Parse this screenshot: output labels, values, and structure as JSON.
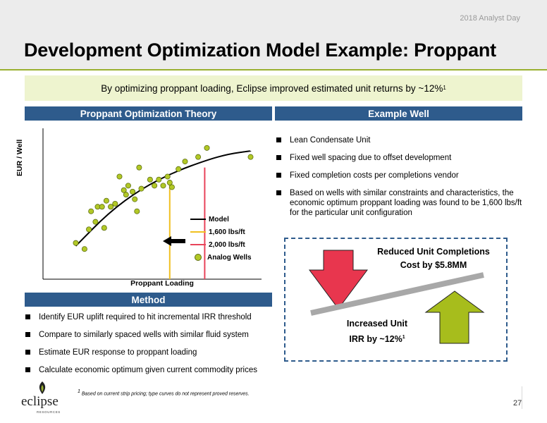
{
  "header": {
    "event": "2018 Analyst Day",
    "title": "Development Optimization Model Example: Proppant"
  },
  "callout": {
    "text": "By optimizing proppant loading, Eclipse improved estimated unit returns by ~12%",
    "footnote_mark": "1"
  },
  "sections": {
    "theory": "Proppant Optimization Theory",
    "example": "Example Well",
    "method": "Method"
  },
  "chart_data": {
    "type": "scatter",
    "xlabel": "Proppant Loading",
    "ylabel": "EUR / Well",
    "legend": [
      "Model",
      "1,600 lbs/ft",
      "2,000 lbs/ft",
      "Analog Wells"
    ],
    "legend_position": "bottom-right",
    "grid": false,
    "ticks_labeled": false,
    "xlim": [
      0,
      100
    ],
    "ylim": [
      0,
      100
    ],
    "model_curve": {
      "x": [
        15,
        30,
        45,
        60,
        75,
        85,
        95
      ],
      "y": [
        22,
        44,
        60,
        71,
        79,
        83,
        85
      ]
    },
    "vertical_lines": [
      {
        "label": "1,600 lbs/ft",
        "x": 58,
        "color": "#f0c020"
      },
      {
        "label": "2,000 lbs/ft",
        "x": 74,
        "color": "#e8445a"
      }
    ],
    "analog_wells": [
      {
        "x": 15,
        "y": 24
      },
      {
        "x": 19,
        "y": 20
      },
      {
        "x": 21,
        "y": 33
      },
      {
        "x": 22,
        "y": 45
      },
      {
        "x": 24,
        "y": 38
      },
      {
        "x": 25,
        "y": 48
      },
      {
        "x": 27,
        "y": 48
      },
      {
        "x": 28,
        "y": 34
      },
      {
        "x": 29,
        "y": 52
      },
      {
        "x": 31,
        "y": 48
      },
      {
        "x": 33,
        "y": 50
      },
      {
        "x": 35,
        "y": 68
      },
      {
        "x": 37,
        "y": 59
      },
      {
        "x": 38,
        "y": 56
      },
      {
        "x": 39,
        "y": 62
      },
      {
        "x": 41,
        "y": 58
      },
      {
        "x": 42,
        "y": 53
      },
      {
        "x": 43,
        "y": 45
      },
      {
        "x": 44,
        "y": 74
      },
      {
        "x": 45,
        "y": 60
      },
      {
        "x": 49,
        "y": 66
      },
      {
        "x": 51,
        "y": 62
      },
      {
        "x": 53,
        "y": 66
      },
      {
        "x": 55,
        "y": 62
      },
      {
        "x": 57,
        "y": 68
      },
      {
        "x": 58,
        "y": 64
      },
      {
        "x": 59,
        "y": 61
      },
      {
        "x": 62,
        "y": 73
      },
      {
        "x": 65,
        "y": 78
      },
      {
        "x": 71,
        "y": 81
      },
      {
        "x": 75,
        "y": 87
      },
      {
        "x": 95,
        "y": 81
      }
    ]
  },
  "example_well": {
    "bullets": [
      "Lean Condensate Unit",
      "Fixed well spacing due to offset development",
      "Fixed completion costs per completions vendor",
      "Based on wells with similar constraints and characteristics, the economic optimum proppant loading was found to be 1,600 lbs/ft for the particular unit configuration"
    ],
    "reduced_line1": "Reduced Unit Completions",
    "reduced_line2": "Cost by $5.8MM",
    "increased_line1": "Increased Unit",
    "increased_line2": "IRR by ~12%",
    "increased_mark": "1",
    "colors": {
      "down_arrow": "#e8364e",
      "up_arrow": "#a7bd1c",
      "beam": "#a8a8a8"
    }
  },
  "method": {
    "bullets": [
      "Identify EUR uplift required to hit incremental IRR threshold",
      "Compare to similarly spaced wells with similar fluid system",
      "Estimate EUR response to proppant loading",
      "Calculate economic optimum given current commodity prices"
    ]
  },
  "footer": {
    "note": "Based on current strip pricing; type curves do not represent proved reserves.",
    "note_mark": "1",
    "logo_text": "eclipse",
    "logo_sub": "RESOURCES",
    "page": "27"
  },
  "colors": {
    "header_bar": "#2e5b8c",
    "accent_green": "#9ab030",
    "callout_bg": "#eef4cf"
  }
}
